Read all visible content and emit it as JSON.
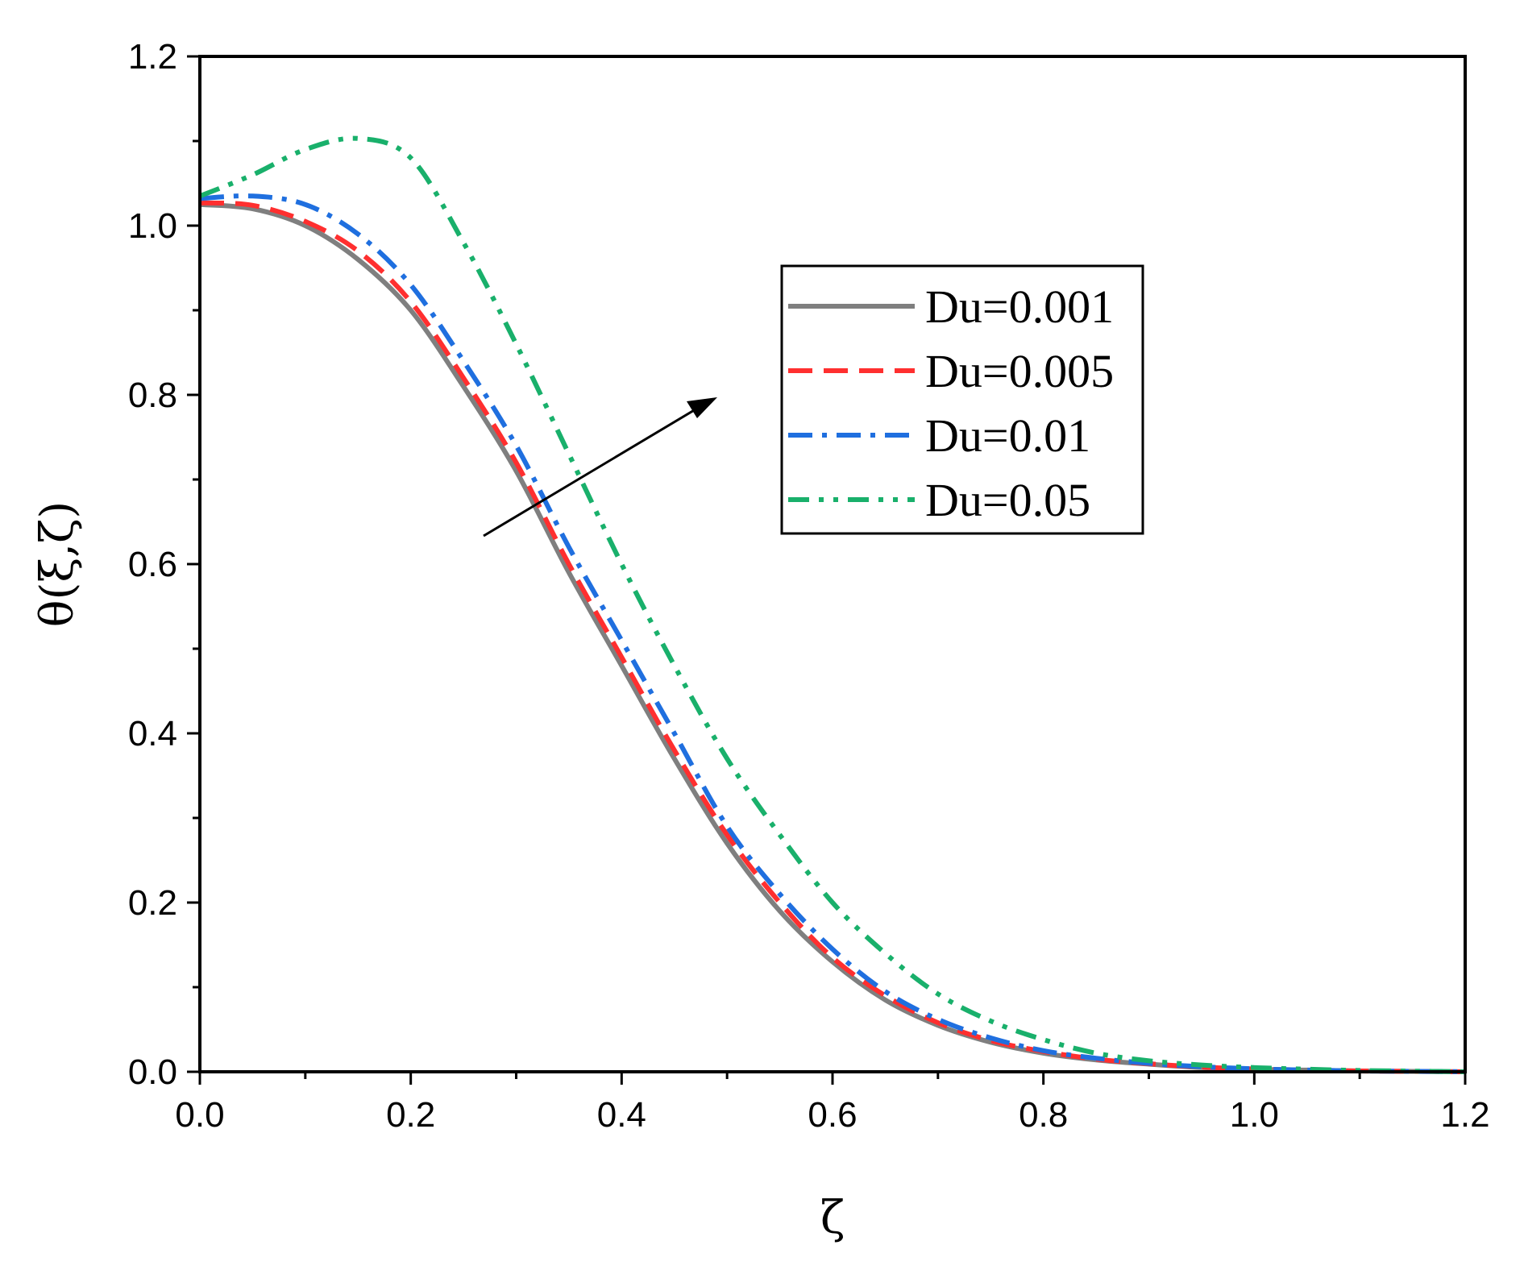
{
  "chart_data": {
    "type": "line",
    "title": "",
    "xlabel": "ζ",
    "ylabel": "θ(ξ,ζ)",
    "xlim": [
      0.0,
      1.2
    ],
    "ylim": [
      0.0,
      1.2
    ],
    "xticks": [
      "0.0",
      "0.2",
      "0.4",
      "0.6",
      "0.8",
      "1.0",
      "1.2"
    ],
    "yticks": [
      "0.0",
      "0.2",
      "0.4",
      "0.6",
      "0.8",
      "1.0",
      "1.2"
    ],
    "grid": false,
    "legend_position": "upper-right of center",
    "annotation": "arrow indicating increasing Du",
    "series": [
      {
        "name": "Du=0.001",
        "color": "#7f7f7f",
        "style": "solid",
        "x": [
          0,
          0.05,
          0.1,
          0.15,
          0.2,
          0.25,
          0.3,
          0.35,
          0.4,
          0.45,
          0.5,
          0.55,
          0.6,
          0.65,
          0.7,
          0.75,
          0.8,
          0.85,
          0.9,
          0.95,
          1.0,
          1.05,
          1.1,
          1.15,
          1.2
        ],
        "values": [
          1.025,
          1.02,
          1.0,
          0.96,
          0.9,
          0.81,
          0.71,
          0.59,
          0.48,
          0.37,
          0.27,
          0.19,
          0.13,
          0.085,
          0.055,
          0.035,
          0.022,
          0.014,
          0.009,
          0.005,
          0.003,
          0.002,
          0.001,
          0.0005,
          0.0
        ]
      },
      {
        "name": "Du=0.005",
        "color": "#ff2f2f",
        "style": "dashed",
        "x": [
          0,
          0.05,
          0.1,
          0.15,
          0.2,
          0.25,
          0.3,
          0.35,
          0.4,
          0.45,
          0.5,
          0.55,
          0.6,
          0.65,
          0.7,
          0.75,
          0.8,
          0.85,
          0.9,
          0.95,
          1.0,
          1.05,
          1.1,
          1.15,
          1.2
        ],
        "values": [
          1.027,
          1.024,
          1.005,
          0.97,
          0.91,
          0.82,
          0.72,
          0.6,
          0.49,
          0.38,
          0.28,
          0.2,
          0.135,
          0.09,
          0.058,
          0.037,
          0.024,
          0.015,
          0.0095,
          0.0055,
          0.0033,
          0.002,
          0.001,
          0.0005,
          0.0
        ]
      },
      {
        "name": "Du=0.01",
        "color": "#1f6fdf",
        "style": "dash-dot",
        "x": [
          0,
          0.05,
          0.1,
          0.15,
          0.2,
          0.25,
          0.3,
          0.35,
          0.4,
          0.45,
          0.5,
          0.55,
          0.6,
          0.65,
          0.7,
          0.75,
          0.8,
          0.85,
          0.9,
          0.95,
          1.0,
          1.05,
          1.1,
          1.15,
          1.2
        ],
        "values": [
          1.032,
          1.035,
          1.025,
          0.99,
          0.93,
          0.84,
          0.74,
          0.62,
          0.51,
          0.4,
          0.29,
          0.21,
          0.145,
          0.095,
          0.062,
          0.04,
          0.025,
          0.016,
          0.01,
          0.006,
          0.0035,
          0.002,
          0.001,
          0.0005,
          0.0
        ]
      },
      {
        "name": "Du=0.05",
        "color": "#19b06b",
        "style": "dash-dot-dot",
        "x": [
          0,
          0.05,
          0.1,
          0.15,
          0.2,
          0.25,
          0.3,
          0.35,
          0.4,
          0.45,
          0.5,
          0.55,
          0.6,
          0.65,
          0.7,
          0.75,
          0.8,
          0.85,
          0.9,
          0.95,
          1.0,
          1.05,
          1.1,
          1.15,
          1.2
        ],
        "values": [
          1.035,
          1.06,
          1.09,
          1.103,
          1.08,
          0.98,
          0.86,
          0.73,
          0.6,
          0.48,
          0.37,
          0.28,
          0.2,
          0.14,
          0.092,
          0.06,
          0.038,
          0.022,
          0.013,
          0.008,
          0.005,
          0.003,
          0.0015,
          0.0008,
          0.0
        ]
      }
    ]
  }
}
